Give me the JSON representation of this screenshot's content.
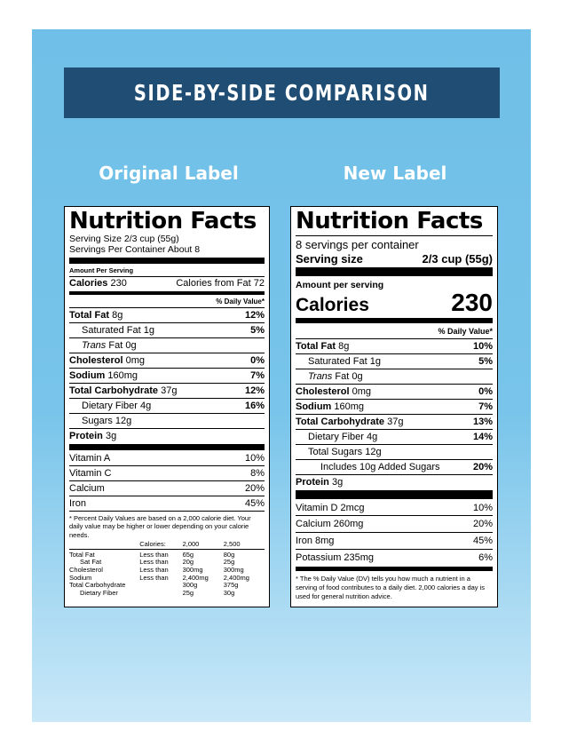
{
  "header": {
    "title": "SIDE-BY-SIDE COMPARISON"
  },
  "original": {
    "heading": "Original Label",
    "title": "Nutrition Facts",
    "serving_size": "Serving Size 2/3 cup (55g)",
    "servings_per_container": "Servings Per Container About 8",
    "amount_per_serving": "Amount Per Serving",
    "calories_label": "Calories",
    "calories_value": "230",
    "calories_from_fat": "Calories from Fat 72",
    "daily_value_header": "% Daily Value*",
    "nutrients": [
      {
        "name": "Total Fat",
        "amount": "8g",
        "dv": "12%"
      },
      {
        "name": "Saturated Fat",
        "amount": "1g",
        "dv": "5%"
      },
      {
        "name": "Trans",
        "amount": "Fat 0g",
        "dv": ""
      },
      {
        "name": "Cholesterol",
        "amount": "0mg",
        "dv": "0%"
      },
      {
        "name": "Sodium",
        "amount": "160mg",
        "dv": "7%"
      },
      {
        "name": "Total Carbohydrate",
        "amount": "37g",
        "dv": "12%"
      },
      {
        "name": "Dietary Fiber",
        "amount": "4g",
        "dv": "16%"
      },
      {
        "name": "Sugars",
        "amount": "12g",
        "dv": ""
      },
      {
        "name": "Protein",
        "amount": "3g",
        "dv": ""
      }
    ],
    "vitamins": [
      {
        "name": "Vitamin A",
        "dv": "10%"
      },
      {
        "name": "Vitamin C",
        "dv": "8%"
      },
      {
        "name": "Calcium",
        "dv": "20%"
      },
      {
        "name": "Iron",
        "dv": "45%"
      }
    ],
    "footnote": "* Percent Daily Values are based on a 2,000 calorie diet. Your daily value may be higher or lower depending on your calorie needs.",
    "dv_table": {
      "header": [
        "Calories:",
        "2,000",
        "2,500"
      ],
      "rows": [
        [
          "Total Fat",
          "Less than",
          "65g",
          "80g"
        ],
        [
          "Sat Fat",
          "Less than",
          "20g",
          "25g"
        ],
        [
          "Cholesterol",
          "Less than",
          "300mg",
          "300mg"
        ],
        [
          "Sodium",
          "Less than",
          "2,400mg",
          "2,400mg"
        ],
        [
          "Total Carbohydrate",
          "",
          "300g",
          "375g"
        ],
        [
          "Dietary Fiber",
          "",
          "25g",
          "30g"
        ]
      ]
    }
  },
  "new": {
    "heading": "New Label",
    "title": "Nutrition Facts",
    "servings_per_container": "8 servings per container",
    "serving_size_label": "Serving size",
    "serving_size_value": "2/3 cup (55g)",
    "amount_per_serving": "Amount per serving",
    "calories_label": "Calories",
    "calories_value": "230",
    "daily_value_header": "% Daily Value*",
    "nutrients": [
      {
        "name": "Total Fat",
        "amount": "8g",
        "dv": "10%"
      },
      {
        "name": "Saturated Fat",
        "amount": "1g",
        "dv": "5%"
      },
      {
        "name": "Trans",
        "amount": "Fat 0g",
        "dv": ""
      },
      {
        "name": "Cholesterol",
        "amount": "0mg",
        "dv": "0%"
      },
      {
        "name": "Sodium",
        "amount": "160mg",
        "dv": "7%"
      },
      {
        "name": "Total Carbohydrate",
        "amount": "37g",
        "dv": "13%"
      },
      {
        "name": "Dietary Fiber",
        "amount": "4g",
        "dv": "14%"
      },
      {
        "name": "Total Sugars",
        "amount": "12g",
        "dv": ""
      },
      {
        "name": "Includes 10g Added Sugars",
        "amount": "",
        "dv": "20%"
      },
      {
        "name": "Protein",
        "amount": "3g",
        "dv": ""
      }
    ],
    "vitamins": [
      {
        "name": "Vitamin D 2mcg",
        "dv": "10%"
      },
      {
        "name": "Calcium 260mg",
        "dv": "20%"
      },
      {
        "name": "Iron 8mg",
        "dv": "45%"
      },
      {
        "name": "Potassium 235mg",
        "dv": "6%"
      }
    ],
    "footnote": "* The % Daily Value (DV) tells you how much a nutrient in a serving of food contributes to a daily diet. 2,000 calories a day is used for general nutrition advice."
  }
}
